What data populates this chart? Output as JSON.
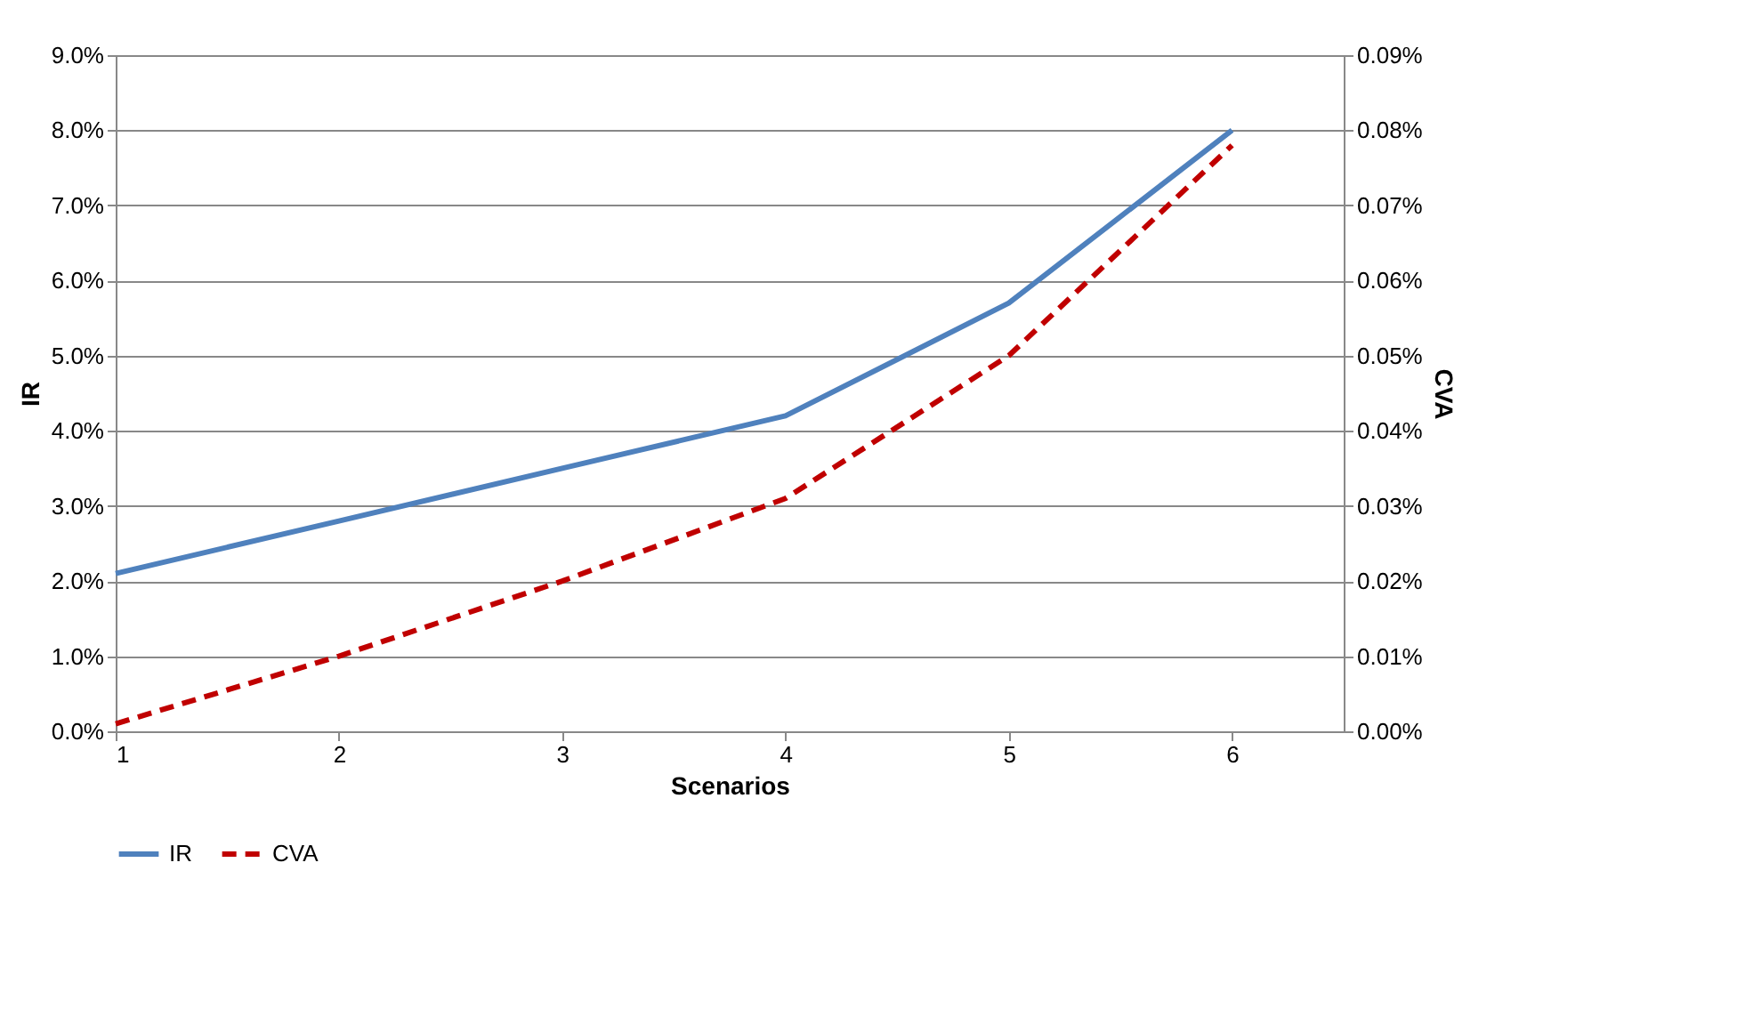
{
  "chart_data": {
    "type": "line",
    "xlabel": "Scenarios",
    "ylabel": "IR",
    "y2label": "CVA",
    "x": [
      1,
      2,
      3,
      4,
      5,
      6
    ],
    "xlim": [
      1,
      6.5
    ],
    "xticks": [
      1,
      2,
      3,
      4,
      5,
      6
    ],
    "ylim": [
      0,
      9
    ],
    "yticks": [
      {
        "value": 0,
        "label": "0.0%"
      },
      {
        "value": 1,
        "label": "1.0%"
      },
      {
        "value": 2,
        "label": "2.0%"
      },
      {
        "value": 3,
        "label": "3.0%"
      },
      {
        "value": 4,
        "label": "4.0%"
      },
      {
        "value": 5,
        "label": "5.0%"
      },
      {
        "value": 6,
        "label": "6.0%"
      },
      {
        "value": 7,
        "label": "7.0%"
      },
      {
        "value": 8,
        "label": "8.0%"
      },
      {
        "value": 9,
        "label": "9.0%"
      }
    ],
    "y2lim": [
      0,
      0.09
    ],
    "y2ticks": [
      {
        "value": 0,
        "label": "0.00%"
      },
      {
        "value": 0.01,
        "label": "0.01%"
      },
      {
        "value": 0.02,
        "label": "0.02%"
      },
      {
        "value": 0.03,
        "label": "0.03%"
      },
      {
        "value": 0.04,
        "label": "0.04%"
      },
      {
        "value": 0.05,
        "label": "0.05%"
      },
      {
        "value": 0.06,
        "label": "0.06%"
      },
      {
        "value": 0.07,
        "label": "0.07%"
      },
      {
        "value": 0.08,
        "label": "0.08%"
      },
      {
        "value": 0.09,
        "label": "0.09%"
      }
    ],
    "series": [
      {
        "name": "IR",
        "color": "#4f81bd",
        "line_style": "solid",
        "values": [
          2.1,
          2.8,
          3.5,
          4.2,
          5.7,
          8.0
        ]
      },
      {
        "name": "CVA",
        "color": "#c00000",
        "line_style": "dashed",
        "axis": "y2",
        "values": [
          0.001,
          0.01,
          0.02,
          0.031,
          0.05,
          0.078
        ]
      }
    ],
    "grid": "y",
    "legend": "bottom"
  }
}
